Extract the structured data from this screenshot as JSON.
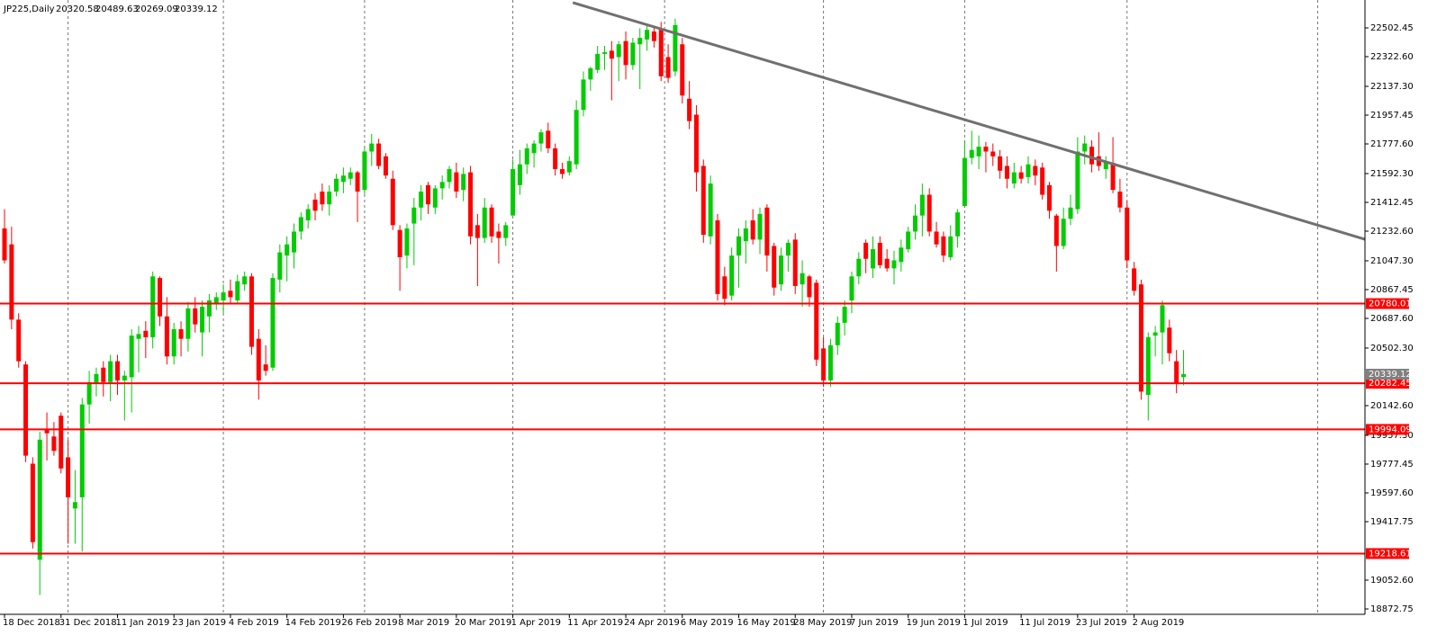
{
  "chart_data": {
    "type": "candlestick",
    "title": "JP225,Daily",
    "up_color": "#00cc00",
    "down_color": "#ff0000",
    "open": [
      21250,
      21150,
      20680,
      20400,
      19780,
      19180,
      19990,
      19950,
      20080,
      19820,
      19500,
      19570,
      20150,
      20280,
      20380,
      20290,
      20420,
      20300,
      20320,
      20560,
      20610,
      20570,
      20940,
      20700,
      20450,
      20620,
      20560,
      20750,
      20600,
      20700,
      20780,
      20800,
      20860,
      20800,
      20900,
      20950,
      20560,
      20400,
      20380,
      20930,
      21080,
      21100,
      21230,
      21300,
      21430,
      21480,
      21400,
      21480,
      21540,
      21560,
      21600,
      21490,
      21730,
      21780,
      21700,
      21560,
      21240,
      21080,
      21280,
      21380,
      21520,
      21380,
      21500,
      21540,
      21600,
      21490,
      21600,
      21270,
      21190,
      21380,
      21230,
      21190,
      21330,
      21520,
      21650,
      21720,
      21780,
      21860,
      21750,
      21620,
      21600,
      21650,
      21990,
      22180,
      22240,
      22340,
      22360,
      22320,
      22420,
      22270,
      22400,
      22430,
      22480,
      22490,
      22320,
      22230,
      22400,
      22060,
      21960,
      21640,
      21200,
      21300,
      20950,
      20830,
      21080,
      21170,
      21300,
      21180,
      21380,
      21140,
      20900,
      21080,
      21180,
      20900,
      20950,
      20910,
      20500,
      20300,
      20520,
      20660,
      20800,
      20950,
      21160,
      21000,
      21160,
      21060,
      21000,
      21040,
      21120,
      21230,
      21330,
      21460,
      21230,
      21200,
      21070,
      21200,
      21390,
      21690,
      21700,
      21760,
      21730,
      21700,
      21640,
      21530,
      21600,
      21570,
      21640,
      21630,
      21520,
      21330,
      21140,
      21310,
      21370,
      21730,
      21760,
      21700,
      21620,
      21660,
      21480,
      21380,
      21000,
      20900,
      20210,
      20580,
      20600,
      20630,
      20420,
      20320.58
    ],
    "high": [
      21370,
      21260,
      20720,
      20420,
      19820,
      19980,
      20100,
      20040,
      20100,
      19930,
      19740,
      20190,
      20360,
      20380,
      20420,
      20460,
      20460,
      20360,
      20620,
      20640,
      20670,
      20980,
      20950,
      20820,
      20660,
      20670,
      20790,
      20820,
      20800,
      20840,
      20850,
      20900,
      20930,
      20960,
      20980,
      20970,
      20620,
      20520,
      20970,
      21150,
      21200,
      21280,
      21350,
      21400,
      21470,
      21530,
      21520,
      21590,
      21630,
      21630,
      21610,
      21760,
      21840,
      21810,
      21720,
      21610,
      21270,
      21280,
      21440,
      21520,
      21540,
      21520,
      21580,
      21640,
      21660,
      21630,
      21640,
      21340,
      21440,
      21400,
      21280,
      21290,
      21680,
      21740,
      21780,
      21800,
      21870,
      21910,
      21780,
      21660,
      21700,
      22050,
      22230,
      22260,
      22390,
      22390,
      22420,
      22420,
      22480,
      22440,
      22500,
      22520,
      22510,
      22540,
      22400,
      22560,
      22440,
      22170,
      22020,
      21680,
      21580,
      21340,
      21010,
      21130,
      21250,
      21300,
      21370,
      21380,
      21400,
      21160,
      21130,
      21180,
      21220,
      21050,
      20960,
      20930,
      20570,
      20560,
      20700,
      20800,
      20980,
      21100,
      21180,
      21200,
      21200,
      21120,
      21110,
      21180,
      21260,
      21400,
      21530,
      21500,
      21290,
      21230,
      21270,
      21370,
      21800,
      21860,
      21830,
      21790,
      21780,
      21740,
      21700,
      21660,
      21640,
      21700,
      21680,
      21660,
      21540,
      21340,
      21380,
      21460,
      21820,
      21830,
      21800,
      21850,
      21700,
      21820,
      21560,
      21420,
      21040,
      20930,
      20600,
      20640,
      20800,
      20680,
      20490,
      20489.63
    ],
    "low": [
      21030,
      20620,
      20380,
      19790,
      19250,
      18960,
      19800,
      19830,
      19720,
      19280,
      19280,
      19230,
      20030,
      20200,
      20200,
      20170,
      20210,
      20050,
      20100,
      20350,
      20440,
      20500,
      20640,
      20400,
      20400,
      20450,
      20480,
      20600,
      20450,
      20600,
      20740,
      20720,
      20780,
      20780,
      20860,
      20460,
      20180,
      20330,
      20360,
      20850,
      20920,
      21000,
      21180,
      21250,
      21300,
      21360,
      21330,
      21450,
      21470,
      21520,
      21290,
      21460,
      21640,
      21620,
      21560,
      21240,
      20860,
      21000,
      21020,
      21300,
      21340,
      21340,
      21430,
      21500,
      21440,
      21420,
      21150,
      20890,
      21160,
      21160,
      21030,
      21140,
      21330,
      21460,
      21590,
      21630,
      21730,
      21720,
      21580,
      21560,
      21580,
      21620,
      21950,
      22110,
      22220,
      22240,
      22050,
      22170,
      22180,
      22240,
      22120,
      22360,
      22380,
      22170,
      22160,
      22200,
      22030,
      21870,
      21480,
      21160,
      21150,
      20800,
      20770,
      20800,
      20880,
      21030,
      21150,
      21090,
      20980,
      20830,
      20860,
      20980,
      20840,
      20760,
      20760,
      20390,
      20260,
      20260,
      20460,
      20580,
      20720,
      20900,
      20970,
      20940,
      21000,
      20980,
      20900,
      20980,
      21100,
      21180,
      21200,
      21200,
      21130,
      21040,
      21050,
      21130,
      21380,
      21650,
      21620,
      21600,
      21640,
      21560,
      21500,
      21500,
      21530,
      21530,
      21520,
      21430,
      21310,
      20980,
      21120,
      21270,
      21340,
      21650,
      21600,
      21610,
      21560,
      21470,
      21350,
      21000,
      20830,
      20180,
      20050,
      20450,
      20400,
      20420,
      20220,
      20269.09
    ],
    "close": [
      21050,
      20680,
      20420,
      19830,
      19290,
      19930,
      19970,
      19860,
      19750,
      19570,
      19540,
      20150,
      20290,
      20340,
      20290,
      20420,
      20300,
      20330,
      20580,
      20590,
      20570,
      20950,
      20700,
      20450,
      20620,
      20560,
      20750,
      20650,
      20760,
      20800,
      20820,
      20850,
      20820,
      20920,
      20950,
      20510,
      20300,
      20360,
      20940,
      21100,
      21150,
      21230,
      21320,
      21370,
      21360,
      21400,
      21480,
      21560,
      21580,
      21600,
      21480,
      21730,
      21780,
      21640,
      21580,
      21270,
      21070,
      21250,
      21380,
      21480,
      21400,
      21500,
      21540,
      21620,
      21480,
      21590,
      21200,
      21190,
      21380,
      21200,
      21190,
      21270,
      21620,
      21650,
      21750,
      21780,
      21850,
      21750,
      21620,
      21590,
      21670,
      21990,
      22180,
      22250,
      22340,
      22350,
      22310,
      22400,
      22270,
      22410,
      22440,
      22490,
      22420,
      22200,
      22190,
      22520,
      22080,
      21920,
      21600,
      21210,
      21530,
      20840,
      20810,
      21080,
      21200,
      21250,
      21180,
      21340,
      21080,
      20880,
      21080,
      21160,
      20890,
      20970,
      20820,
      20430,
      20300,
      20520,
      20660,
      20760,
      20950,
      21060,
      21060,
      21120,
      21020,
      21000,
      21050,
      21130,
      21230,
      21330,
      21460,
      21230,
      21150,
      21080,
      21200,
      21350,
      21690,
      21740,
      21760,
      21730,
      21700,
      21610,
      21560,
      21600,
      21560,
      21650,
      21580,
      21460,
      21360,
      21140,
      21310,
      21380,
      21730,
      21780,
      21650,
      21640,
      21660,
      21490,
      21380,
      21050,
      20860,
      20230,
      20570,
      20600,
      20770,
      20470,
      20280,
      20339.12
    ],
    "xlim": [
      -0.64,
      192.7
    ],
    "xticks": [
      {
        "value": 0,
        "label": "18 Dec 2018"
      },
      {
        "value": 8,
        "label": "31 Dec 2018"
      },
      {
        "value": 16,
        "label": "11 Jan 2019"
      },
      {
        "value": 24,
        "label": "23 Jan 2019"
      },
      {
        "value": 32,
        "label": "4 Feb 2019"
      },
      {
        "value": 40,
        "label": "14 Feb 2019"
      },
      {
        "value": 48,
        "label": "26 Feb 2019"
      },
      {
        "value": 56,
        "label": "8 Mar 2019"
      },
      {
        "value": 64,
        "label": "20 Mar 2019"
      },
      {
        "value": 72,
        "label": "1 Apr 2019"
      },
      {
        "value": 80,
        "label": "11 Apr 2019"
      },
      {
        "value": 88,
        "label": "24 Apr 2019"
      },
      {
        "value": 96,
        "label": "6 May 2019"
      },
      {
        "value": 104,
        "label": "16 May 2019"
      },
      {
        "value": 112,
        "label": "28 May 2019"
      },
      {
        "value": 120,
        "label": "7 Jun 2019"
      },
      {
        "value": 128,
        "label": "19 Jun 2019"
      },
      {
        "value": 136,
        "label": "1 Jul 2019"
      },
      {
        "value": 144,
        "label": "11 Jul 2019"
      },
      {
        "value": 152,
        "label": "23 Jul 2019"
      },
      {
        "value": 160,
        "label": "2 Aug 2019"
      }
    ],
    "xgrid": [
      9,
      31,
      51,
      72,
      93.5,
      116,
      136,
      159,
      186
    ],
    "ylim": [
      18839.0,
      22676.6
    ],
    "yticks": [
      22502.45,
      {
        "value": 22322.6,
        "label": "22322.60"
      },
      {
        "value": 22137.3,
        "label": "22137.30"
      },
      21957.45,
      {
        "value": 21777.6,
        "label": "21777.60"
      },
      {
        "value": 21592.3,
        "label": "21592.30"
      },
      21412.45,
      {
        "value": 21232.6,
        "label": "21232.60"
      },
      {
        "value": 21047.3,
        "label": "21047.30"
      },
      20867.45,
      {
        "value": 20687.6,
        "label": "20687.60"
      },
      {
        "value": 20502.3,
        "label": "20502.30"
      },
      {
        "value": 20142.6,
        "label": "20142.60"
      },
      {
        "value": 19957.3,
        "label": "19957.30"
      },
      19777.45,
      {
        "value": 19597.6,
        "label": "19597.60"
      },
      19417.75,
      {
        "value": 19052.6,
        "label": "19052.60"
      },
      18872.75
    ],
    "hlines": {
      "values": [
        20780.01,
        20282.45,
        19994.09,
        19218.61
      ],
      "color": "#ff0000"
    },
    "trendline": {
      "x": [
        80.5,
        192.7
      ],
      "values": [
        22660,
        21182
      ],
      "color": "#707070"
    }
  }
}
